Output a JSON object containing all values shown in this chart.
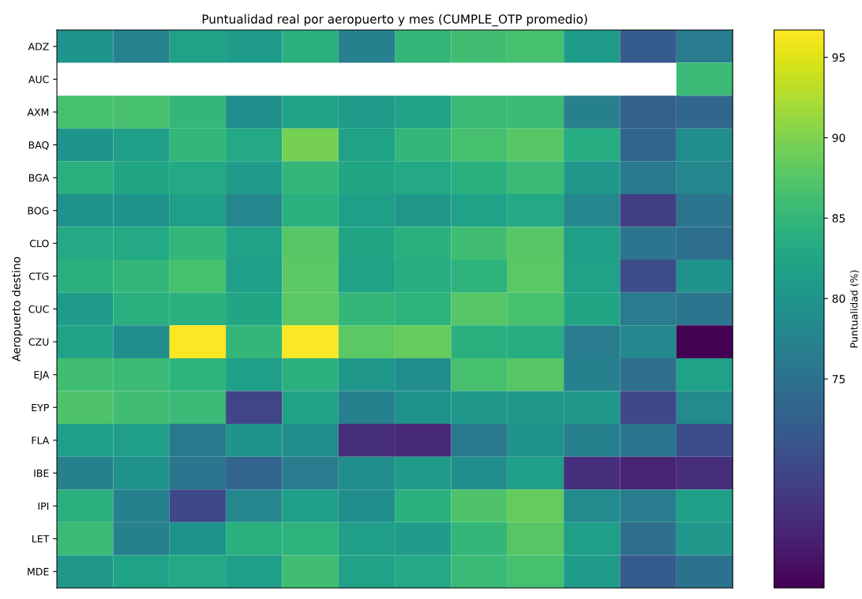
{
  "chart_data": {
    "type": "heatmap",
    "title": "Puntualidad real por aeropuerto y mes (CUMPLE_OTP promedio)",
    "ylabel": "Aeropuerto destino",
    "clabel": "Puntualidad (%)",
    "categories": [
      null,
      null,
      null,
      null,
      null,
      null,
      null,
      null,
      null,
      null,
      null,
      null
    ],
    "y_categories": [
      "ADZ",
      "AUC",
      "AXM",
      "BAQ",
      "BGA",
      "BOG",
      "CLO",
      "CTG",
      "CUC",
      "CZU",
      "EJA",
      "EYP",
      "FLA",
      "IBE",
      "IPI",
      "LET",
      "MDE"
    ],
    "cells": [
      [
        80,
        77.5,
        82,
        81,
        84,
        77,
        85,
        86,
        86.5,
        81,
        72,
        76.5
      ],
      [
        null,
        null,
        null,
        null,
        null,
        null,
        null,
        null,
        null,
        null,
        null,
        85.5
      ],
      [
        86.5,
        86.5,
        85,
        79,
        82,
        81,
        82,
        85.5,
        85.5,
        77,
        72.5,
        73.5
      ],
      [
        80,
        81.5,
        85,
        83,
        89.5,
        82,
        85,
        86.5,
        87.5,
        83.5,
        73,
        79
      ],
      [
        84,
        82.5,
        83,
        81,
        85,
        82.5,
        83,
        84,
        85.5,
        80.5,
        76,
        78
      ],
      [
        79.5,
        80,
        81.5,
        78,
        84,
        81.5,
        80.5,
        82,
        83,
        78,
        68.5,
        75.5
      ],
      [
        83,
        83,
        85,
        82,
        87.5,
        82.5,
        84,
        86,
        87.5,
        81.5,
        75.5,
        74.5
      ],
      [
        84,
        85,
        86.5,
        81.5,
        88,
        82,
        83.5,
        84.5,
        88,
        82,
        70,
        79.5
      ],
      [
        81,
        84,
        84,
        82.5,
        88,
        85,
        84.5,
        87.5,
        86.5,
        82.5,
        76.5,
        75.5
      ],
      [
        82,
        79,
        96.5,
        85,
        96.5,
        88,
        88.5,
        84,
        83.5,
        76.5,
        78,
        62
      ],
      [
        86,
        85.5,
        84.5,
        81.5,
        84,
        80.5,
        79,
        86.5,
        87.5,
        77,
        74.5,
        82
      ],
      [
        87,
        86,
        85.5,
        69,
        82,
        77,
        79.5,
        80.5,
        80.5,
        80.5,
        69.5,
        78.5
      ],
      [
        81.5,
        81.5,
        76,
        80,
        79,
        66.5,
        66,
        76,
        79.5,
        77,
        75.5,
        70
      ],
      [
        77,
        79.5,
        75.5,
        73,
        76.5,
        79,
        81,
        79,
        81.5,
        66.5,
        65.5,
        66.5
      ],
      [
        84,
        77,
        69.5,
        78,
        81.5,
        79,
        84,
        87,
        88.5,
        78.5,
        76.5,
        81.5
      ],
      [
        85.5,
        77,
        79.5,
        84,
        84.5,
        81.5,
        81,
        85,
        87.5,
        81.5,
        74.5,
        80.5
      ],
      [
        80.5,
        82,
        83,
        81.5,
        86,
        82,
        83,
        85.5,
        86.5,
        81,
        72,
        75
      ]
    ],
    "clim": [
      62,
      96.7
    ],
    "cticks": [
      75,
      80,
      85,
      90,
      95
    ]
  }
}
